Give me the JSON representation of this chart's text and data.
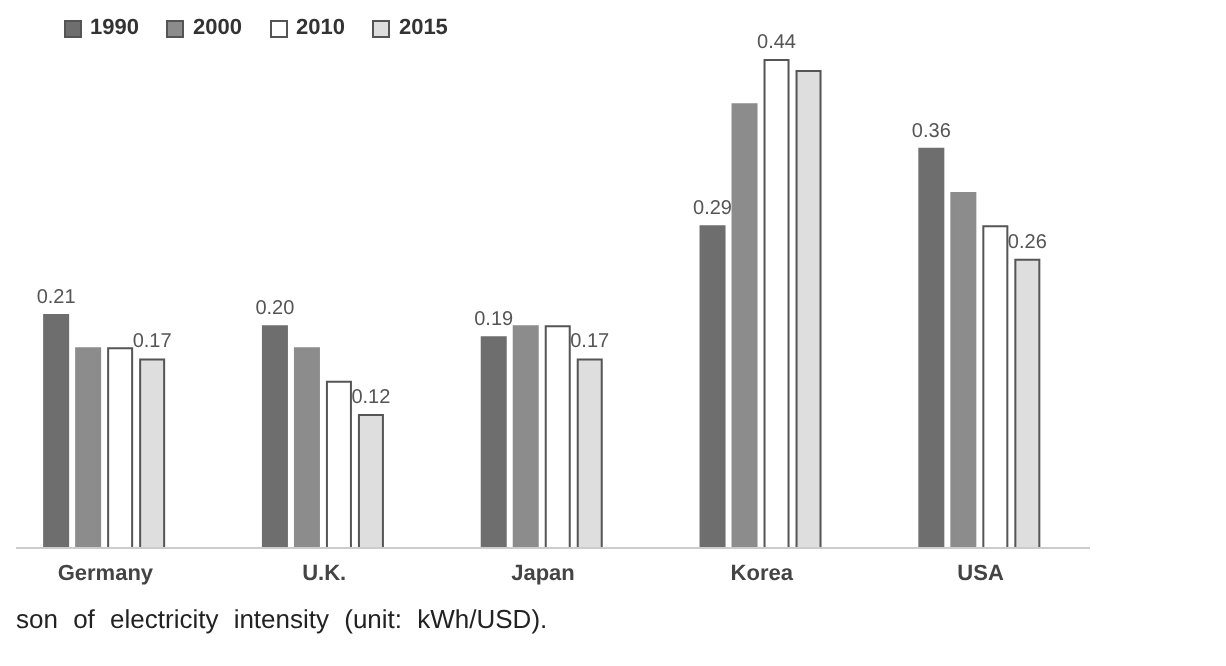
{
  "chart_data": {
    "type": "bar",
    "categories": [
      "Germany",
      "U.K.",
      "Japan",
      "Korea",
      "USA"
    ],
    "series": [
      {
        "name": "1990",
        "color": "#6e6e6e",
        "values": [
          0.21,
          0.2,
          0.19,
          0.29,
          0.36
        ],
        "value_labels": [
          "0.21",
          "0.20",
          "0.19",
          "0.29",
          "0.36"
        ]
      },
      {
        "name": "2000",
        "color": "#8c8c8c",
        "values": [
          0.18,
          0.18,
          0.2,
          0.4,
          0.32
        ],
        "value_labels": [
          null,
          null,
          null,
          null,
          null
        ]
      },
      {
        "name": "2010",
        "color": "#ffffff",
        "values": [
          0.18,
          0.15,
          0.2,
          0.44,
          0.29
        ],
        "value_labels": [
          null,
          null,
          null,
          "0.44",
          null
        ]
      },
      {
        "name": "2015",
        "color": "#dedede",
        "values": [
          0.17,
          0.12,
          0.17,
          0.43,
          0.26
        ],
        "value_labels": [
          "0.17",
          "0.12",
          "0.17",
          null,
          "0.26"
        ]
      }
    ],
    "legend": "top left",
    "annotations": [
      "son of electricity intensity (unit: kWh/USD)."
    ]
  }
}
